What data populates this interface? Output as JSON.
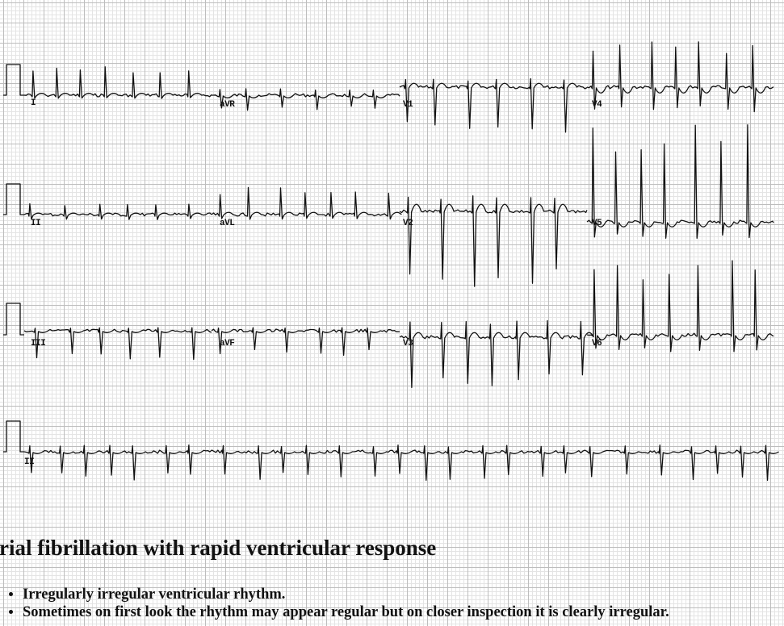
{
  "ecg": {
    "leads": [
      {
        "label": "I",
        "key": "lead_I"
      },
      {
        "label": "aVR",
        "key": "lead_aVR"
      },
      {
        "label": "V1",
        "key": "lead_V1"
      },
      {
        "label": "V4",
        "key": "lead_V4"
      },
      {
        "label": "II",
        "key": "lead_II"
      },
      {
        "label": "aVL",
        "key": "lead_aVL"
      },
      {
        "label": "V2",
        "key": "lead_V2"
      },
      {
        "label": "V5",
        "key": "lead_V5"
      },
      {
        "label": "III",
        "key": "lead_III"
      },
      {
        "label": "aVF",
        "key": "lead_aVF"
      },
      {
        "label": "V3",
        "key": "lead_V3"
      },
      {
        "label": "V6",
        "key": "lead_V6"
      },
      {
        "label": "II",
        "key": "lead_II_rhythm"
      }
    ]
  },
  "caption": "trial fibrillation with rapid ventricular response",
  "bullets": [
    "Irregularly irregular ventricular rhythm.",
    "Sometimes on first look the rhythm may appear regular but on closer inspection it is clearly irregular."
  ],
  "colors": {
    "trace": "#111111",
    "grid_major": "#bdbdbd",
    "grid_minor": "#e4e4e4"
  }
}
